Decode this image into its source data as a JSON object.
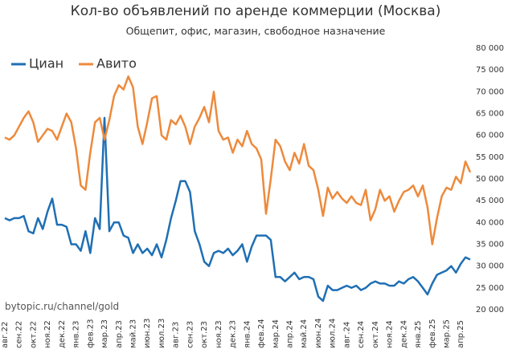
{
  "chart_data": {
    "type": "line",
    "title": "Кол-во объявлений по аренде коммерции (Москва)",
    "subtitle": "Общепит, офис, магазин, свободное назначение",
    "annotation": "bytopic.ru/channel/gold",
    "legend": "upper left",
    "categories": [
      "авг.22",
      null,
      null,
      "сен.22",
      null,
      null,
      "окт.22",
      null,
      null,
      "ноя.22",
      null,
      null,
      "дек.22",
      null,
      null,
      "янв.23",
      null,
      null,
      "фев.23",
      null,
      null,
      "мар.23",
      null,
      null,
      "апр.23",
      null,
      null,
      "май.23",
      null,
      null,
      "июн.23",
      null,
      null,
      "июл.23",
      null,
      null,
      "авг.23",
      null,
      null,
      "сен.23",
      null,
      null,
      "окт.23",
      null,
      null,
      "ноя.23",
      null,
      null,
      "дек.23",
      null,
      null,
      "янв.24",
      null,
      null,
      "фев.24",
      null,
      null,
      "мар.24",
      null,
      null,
      "апр.24",
      null,
      null,
      "май.24",
      null,
      null,
      "июн.24",
      null,
      null,
      "июл.24",
      null,
      null,
      "авг.24",
      null,
      null,
      "сен.24",
      null,
      null,
      "окт.24",
      null,
      null,
      "ноя.24",
      null,
      null,
      "дек.24",
      null,
      null,
      "янв.25",
      null,
      null,
      "фев.25",
      null,
      null,
      "мар.25",
      null,
      null,
      "апр.25",
      null,
      null
    ],
    "series": [
      {
        "name": "Циан",
        "color": "#1f6fb4",
        "values": [
          41000,
          40500,
          41000,
          41000,
          41500,
          38000,
          37500,
          41000,
          38500,
          42500,
          45500,
          39500,
          39500,
          39000,
          35000,
          35000,
          33500,
          38000,
          33000,
          41000,
          38500,
          64000,
          38000,
          40000,
          40000,
          37000,
          36500,
          33000,
          35000,
          33000,
          34000,
          32500,
          35000,
          32000,
          36000,
          41000,
          45000,
          49500,
          49500,
          47000,
          38000,
          35000,
          31000,
          30000,
          33000,
          33500,
          33000,
          34000,
          32500,
          33500,
          35000,
          31000,
          34500,
          37000,
          37000,
          37000,
          36000,
          27500,
          27500,
          26500,
          27500,
          28500,
          27000,
          27500,
          27500,
          27000,
          23000,
          22000,
          25500,
          24500,
          24500,
          25000,
          25500,
          25000,
          25500,
          24500,
          25000,
          26000,
          26500,
          26000,
          26000,
          25500,
          25500,
          26500,
          26000,
          27000,
          27500,
          26500,
          25000,
          23500,
          26000,
          28000,
          28500,
          29000,
          30000,
          28500,
          30500,
          32000,
          31500
        ]
      },
      {
        "name": "Авито",
        "color": "#ed8a3c",
        "values": [
          59500,
          59000,
          60000,
          62000,
          64000,
          65500,
          63000,
          58500,
          60000,
          61500,
          61000,
          59000,
          62000,
          65000,
          63000,
          57000,
          48500,
          47500,
          56000,
          63000,
          64000,
          59000,
          63500,
          69000,
          71500,
          70500,
          73500,
          71000,
          62000,
          58000,
          63000,
          68500,
          69000,
          60000,
          59000,
          63500,
          62500,
          64500,
          62000,
          58000,
          62000,
          64000,
          66500,
          63000,
          70000,
          61000,
          59000,
          59500,
          56000,
          59000,
          57500,
          61000,
          58000,
          57000,
          54500,
          42000,
          50000,
          59000,
          57500,
          54000,
          52000,
          56000,
          53500,
          58000,
          53000,
          52000,
          47500,
          41500,
          48000,
          45500,
          47000,
          45500,
          44500,
          46000,
          44500,
          44000,
          47500,
          40500,
          43000,
          47500,
          45000,
          46000,
          42500,
          45000,
          47000,
          47500,
          48500,
          46000,
          48500,
          43500,
          35000,
          41000,
          46000,
          48000,
          47500,
          50500,
          49000,
          54000,
          51500
        ]
      }
    ],
    "ylim": [
      20000,
      80000
    ],
    "yticks": [
      {
        "value": 20000,
        "label": "20 000"
      },
      {
        "value": 25000,
        "label": "25 000"
      },
      {
        "value": 30000,
        "label": "30 000"
      },
      {
        "value": 35000,
        "label": "35 000"
      },
      {
        "value": 40000,
        "label": "40 000"
      },
      {
        "value": 45000,
        "label": "45 000"
      },
      {
        "value": 50000,
        "label": "50 000"
      },
      {
        "value": 55000,
        "label": "55 000"
      },
      {
        "value": 60000,
        "label": "60 000"
      },
      {
        "value": 65000,
        "label": "65 000"
      },
      {
        "value": 70000,
        "label": "70 000"
      },
      {
        "value": 75000,
        "label": "75 000"
      },
      {
        "value": 80000,
        "label": "80 000"
      }
    ],
    "grid": false
  }
}
